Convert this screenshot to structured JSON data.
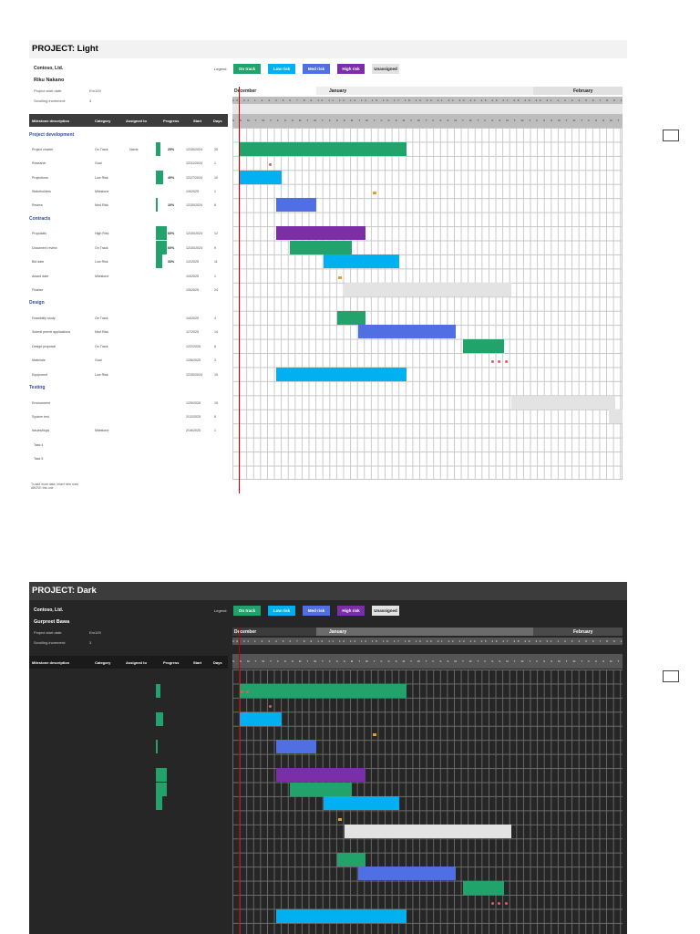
{
  "colors": {
    "on_track": "#22a36b",
    "low_risk": "#00b0f0",
    "med_risk": "#4f6fe3",
    "high_risk": "#7b2ea6",
    "unassigned": "#e3e3e3"
  },
  "light": {
    "title": "PROJECT: Light",
    "company": "Contoso, Ltd.",
    "manager": "Riku Nakano",
    "start_label": "Project start date:",
    "start_value": "Em109",
    "scroll_label": "Scrolling increment:",
    "scroll_value": "3",
    "legend": {
      "label": "Legend:",
      "on_track": "On track",
      "low_risk": "Low risk",
      "med_risk": "Med risk",
      "high_risk": "High risk",
      "unassigned": "Unassigned"
    },
    "headers": {
      "milestone": "Milestone description",
      "category": "Category",
      "assigned": "Assigned to",
      "progress": "Progress",
      "start": "Start",
      "days": "Days"
    },
    "months": {
      "m1": "December",
      "m2": "January",
      "m3": "February"
    },
    "day_numbers": "30 31 1 2 3 4 5 6 7 8 9 10 11 12 13 14 15 16 17 18 19 20 21 22 23 24 25 26 27 28 29 30 31 1 2 3 4 5 6 7 8 9 10 11 12 13 14 15 16 17 18 19 20 21 22 23 24 25 26 27 28 29 30 31 1 2 3 4 5 6 7 8 9 10 11 12 13",
    "weekday_letters": "S S M T W T F S S M T W T F S S M T W T F S S M T W T F S S M T W T F S S M T W T F S S M T W T F S S M T W T F S S M T W T F S S M T W T F S S M T W T F S",
    "sections": {
      "s1": "Project development",
      "s2": "Contracts",
      "s3": "Design",
      "s4": "Testing"
    },
    "rows": [
      {
        "name": "Project charter",
        "category": "On Track",
        "assigned": "Name",
        "progress": "25%",
        "start": "12/30/2024",
        "days": "25"
      },
      {
        "name": "Research",
        "category": "Goal",
        "assigned": "",
        "progress": "",
        "start": "12/31/2024",
        "days": "1"
      },
      {
        "name": "Projections",
        "category": "Low Risk",
        "assigned": "",
        "progress": "40%",
        "start": "12/27/2024",
        "days": "10"
      },
      {
        "name": "Stakeholders",
        "category": "Milestone",
        "assigned": "",
        "progress": "",
        "start": "1/9/2025",
        "days": "1"
      },
      {
        "name": "Review",
        "category": "Med Risk",
        "assigned": "",
        "progress": "10%",
        "start": "12/30/2024",
        "days": "6"
      },
      {
        "name": "Proposals",
        "category": "High Risk",
        "assigned": "",
        "progress": "60%",
        "start": "12/30/2024",
        "days": "12"
      },
      {
        "name": "Document review",
        "category": "On Track",
        "assigned": "",
        "progress": "60%",
        "start": "12/30/2024",
        "days": "9"
      },
      {
        "name": "Bid date",
        "category": "Low Risk",
        "assigned": "",
        "progress": "33%",
        "start": "1/2/2025",
        "days": "11"
      },
      {
        "name": "Award date",
        "category": "Milestone",
        "assigned": "",
        "progress": "",
        "start": "1/4/2025",
        "days": "1"
      },
      {
        "name": "Finalize",
        "category": "",
        "assigned": "",
        "progress": "",
        "start": "1/5/2025",
        "days": "24"
      },
      {
        "name": "Feasibility study",
        "category": "On Track",
        "assigned": "",
        "progress": "",
        "start": "1/4/2025",
        "days": "4"
      },
      {
        "name": "Submit permit applications",
        "category": "Med Risk",
        "assigned": "",
        "progress": "",
        "start": "1/7/2025",
        "days": "14"
      },
      {
        "name": "Design proposal",
        "category": "On Track",
        "assigned": "",
        "progress": "",
        "start": "1/22/2025",
        "days": "6"
      },
      {
        "name": "Materials",
        "category": "Goal",
        "assigned": "",
        "progress": "",
        "start": "1/26/2025",
        "days": "3"
      },
      {
        "name": "Equipment",
        "category": "Low Risk",
        "assigned": "",
        "progress": "",
        "start": "12/30/2024",
        "days": "19"
      },
      {
        "name": "Environment",
        "category": "",
        "assigned": "",
        "progress": "",
        "start": "1/29/2025",
        "days": "15"
      },
      {
        "name": "System test",
        "category": "",
        "assigned": "",
        "progress": "",
        "start": "2/12/2025",
        "days": "5"
      },
      {
        "name": "Issues/bugs",
        "category": "Milestone",
        "assigned": "",
        "progress": "",
        "start": "2/16/2025",
        "days": "1"
      },
      {
        "name": "Task 4",
        "category": "",
        "assigned": "",
        "progress": "",
        "start": "",
        "days": ""
      },
      {
        "name": "Task 5",
        "category": "",
        "assigned": "",
        "progress": "",
        "start": "",
        "days": ""
      }
    ],
    "progress_values": [
      0.25,
      0,
      0.4,
      0,
      0.1,
      0.6,
      0.6,
      0.33
    ],
    "footer1": "To add more data, Insert new rows",
    "footer2": "ABOVE this one"
  },
  "dark": {
    "title": "PROJECT: Dark",
    "company": "Contoso, Ltd.",
    "manager": "Gurpreet Bawa",
    "start_label": "Project start date:",
    "start_value": "Em109",
    "scroll_label": "Scrolling increment:",
    "scroll_value": "3",
    "legend": {
      "label": "Legend:",
      "on_track": "On track",
      "low_risk": "Low risk",
      "med_risk": "Med risk",
      "high_risk": "High risk",
      "unassigned": "Unassigned"
    },
    "headers": {
      "milestone": "Milestone description",
      "category": "Category",
      "assigned": "Assigned to",
      "progress": "Progress",
      "start": "Start",
      "days": "Days"
    },
    "months": {
      "m1": "December",
      "m2": "January",
      "m3": "February"
    }
  }
}
